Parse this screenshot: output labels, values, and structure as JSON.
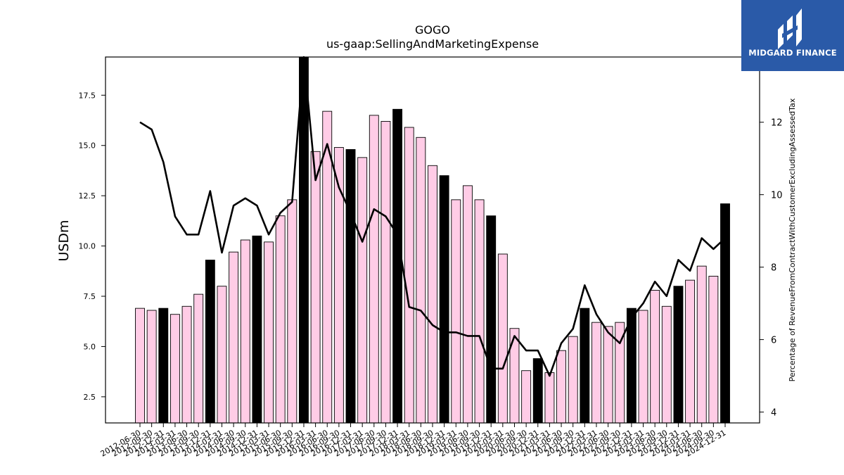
{
  "brand": {
    "name": "MIDGARD FINANCE",
    "color": "#2a5aa8",
    "icon": "midgard-logo-icon"
  },
  "chart_data": {
    "type": "bar",
    "title": "GOGO",
    "subtitle": "us-gaap:SellingAndMarketingExpense",
    "ylabel": "USDm",
    "y2label": "Percentage of RevenueFromContractWithCustomerExcludingAssessedTax",
    "ylim": [
      1.2,
      19.4
    ],
    "y2lim": [
      3.7,
      13.8
    ],
    "yticks": [
      2.5,
      5.0,
      7.5,
      10.0,
      12.5,
      15.0,
      17.5
    ],
    "y2ticks": [
      4,
      6,
      8,
      10,
      12
    ],
    "grid": false,
    "colors": {
      "bar": "#ffcce6",
      "bar_highlight": "#000000",
      "line": "#000000"
    },
    "categories": [
      "2012-06-30",
      "2012-09-30",
      "2012-12-31",
      "2013-03-31",
      "2013-06-30",
      "2013-09-30",
      "2013-12-31",
      "2014-03-31",
      "2014-06-30",
      "2014-09-30",
      "2014-12-31",
      "2015-03-31",
      "2015-06-30",
      "2015-09-30",
      "2015-12-31",
      "2016-03-31",
      "2016-06-30",
      "2016-09-30",
      "2016-12-31",
      "2017-03-31",
      "2017-06-30",
      "2017-09-30",
      "2017-12-31",
      "2018-03-31",
      "2018-06-30",
      "2018-09-30",
      "2018-12-31",
      "2019-03-31",
      "2019-06-30",
      "2019-09-30",
      "2019-12-31",
      "2020-03-31",
      "2020-06-30",
      "2020-09-30",
      "2020-12-31",
      "2021-03-31",
      "2021-06-30",
      "2021-09-30",
      "2021-12-31",
      "2022-03-31",
      "2022-06-30",
      "2022-09-30",
      "2022-12-31",
      "2023-03-31",
      "2023-06-30",
      "2023-09-30",
      "2023-12-31",
      "2024-03-31",
      "2024-06-30",
      "2024-09-30",
      "2024-12-31"
    ],
    "series": [
      {
        "kind": "bar",
        "values": [
          6.9,
          6.8,
          6.9,
          6.6,
          7.0,
          7.6,
          9.3,
          8.0,
          9.7,
          10.3,
          10.5,
          10.2,
          11.5,
          12.3,
          19.5,
          14.7,
          16.7,
          14.9,
          14.8,
          14.4,
          16.5,
          16.2,
          16.8,
          15.9,
          15.4,
          14.0,
          13.5,
          12.3,
          13.0,
          12.3,
          11.5,
          9.6,
          5.9,
          3.8,
          4.4,
          3.7,
          4.8,
          5.5,
          6.9,
          6.2,
          6.0,
          6.2,
          6.9,
          6.8,
          7.8,
          7.0,
          8.0,
          8.3,
          9.0,
          8.5,
          12.1
        ],
        "highlight": [
          2,
          6,
          10,
          14,
          18,
          22,
          26,
          30,
          34,
          38,
          42,
          46,
          50
        ]
      },
      {
        "kind": "line",
        "values": [
          12.0,
          11.8,
          10.9,
          9.4,
          8.9,
          8.9,
          10.1,
          8.4,
          9.7,
          9.9,
          9.7,
          8.9,
          9.5,
          9.8,
          14.2,
          10.4,
          11.4,
          10.2,
          9.5,
          8.7,
          9.6,
          9.4,
          8.9,
          6.9,
          6.8,
          6.4,
          6.2,
          6.2,
          6.1,
          6.1,
          5.2,
          5.2,
          6.1,
          5.7,
          5.7,
          5.0,
          5.9,
          6.3,
          7.5,
          6.7,
          6.2,
          5.9,
          6.6,
          7.0,
          7.6,
          7.2,
          8.2,
          7.9,
          8.8,
          8.5,
          8.8
        ]
      }
    ]
  }
}
